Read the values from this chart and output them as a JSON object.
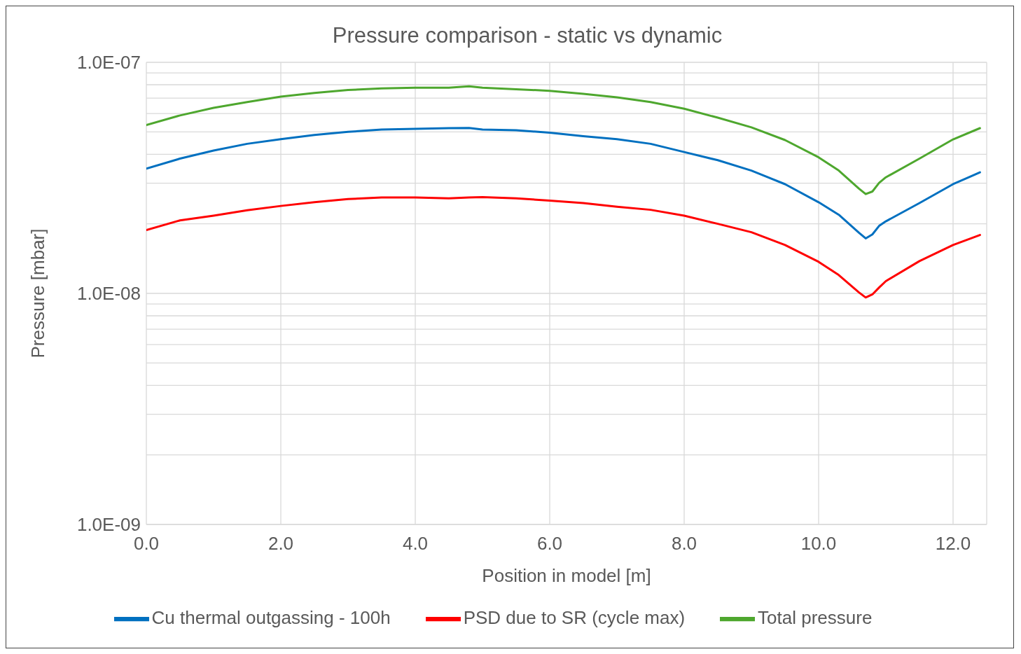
{
  "chart_data": {
    "type": "line",
    "title": "Pressure comparison - static vs dynamic",
    "xlabel": "Position in model [m]",
    "ylabel": "Pressure [mbar]",
    "x": [
      0,
      0.5,
      1,
      1.5,
      2,
      2.5,
      3,
      3.5,
      4,
      4.5,
      4.8,
      5,
      5.5,
      6,
      6.5,
      7,
      7.5,
      8,
      8.5,
      9,
      9.5,
      10,
      10.3,
      10.6,
      10.7,
      10.8,
      10.9,
      11,
      11.5,
      12,
      12.4
    ],
    "series": [
      {
        "name": "Cu thermal outgassing - 100h",
        "color": "#0070c0",
        "values": [
          3.47e-08,
          3.83e-08,
          4.15e-08,
          4.44e-08,
          4.65e-08,
          4.85e-08,
          5e-08,
          5.12e-08,
          5.15e-08,
          5.19e-08,
          5.2e-08,
          5.12e-08,
          5.08e-08,
          4.96e-08,
          4.79e-08,
          4.65e-08,
          4.44e-08,
          4.09e-08,
          3.77e-08,
          3.4e-08,
          2.97e-08,
          2.48e-08,
          2.19e-08,
          1.83e-08,
          1.73e-08,
          1.8e-08,
          1.96e-08,
          2.05e-08,
          2.46e-08,
          2.97e-08,
          3.34e-08
        ]
      },
      {
        "name": "PSD due to SR (cycle max)",
        "color": "#ff0000",
        "values": [
          1.88e-08,
          2.07e-08,
          2.17e-08,
          2.29e-08,
          2.39e-08,
          2.48e-08,
          2.56e-08,
          2.6e-08,
          2.6e-08,
          2.58e-08,
          2.6e-08,
          2.61e-08,
          2.58e-08,
          2.52e-08,
          2.46e-08,
          2.37e-08,
          2.3e-08,
          2.17e-08,
          2e-08,
          1.84e-08,
          1.62e-08,
          1.37e-08,
          1.2e-08,
          1.01e-08,
          9.6e-09,
          9.9e-09,
          1.06e-08,
          1.13e-08,
          1.38e-08,
          1.62e-08,
          1.79e-08
        ]
      },
      {
        "name": "Total pressure",
        "color": "#4ea72e",
        "values": [
          5.35e-08,
          5.89e-08,
          6.35e-08,
          6.73e-08,
          7.1e-08,
          7.37e-08,
          7.59e-08,
          7.71e-08,
          7.76e-08,
          7.76e-08,
          7.88e-08,
          7.76e-08,
          7.65e-08,
          7.53e-08,
          7.31e-08,
          7.05e-08,
          6.73e-08,
          6.3e-08,
          5.76e-08,
          5.23e-08,
          4.61e-08,
          3.88e-08,
          3.4e-08,
          2.84e-08,
          2.69e-08,
          2.76e-08,
          3.01e-08,
          3.18e-08,
          3.83e-08,
          4.64e-08,
          5.19e-08
        ]
      }
    ],
    "xlim": [
      0,
      12.5
    ],
    "xticks": [
      {
        "value": 0,
        "label": "0.0"
      },
      {
        "value": 2,
        "label": "2.0"
      },
      {
        "value": 4,
        "label": "4.0"
      },
      {
        "value": 6,
        "label": "6.0"
      },
      {
        "value": 8,
        "label": "8.0"
      },
      {
        "value": 10,
        "label": "10.0"
      },
      {
        "value": 12,
        "label": "12.0"
      }
    ],
    "ylim": [
      1e-09,
      1e-07
    ],
    "log": true,
    "yticks": [
      {
        "value": 1e-09,
        "label": "1.0E-09"
      },
      {
        "value": 2e-09,
        "label": null
      },
      {
        "value": 3e-09,
        "label": null
      },
      {
        "value": 4e-09,
        "label": null
      },
      {
        "value": 5e-09,
        "label": null
      },
      {
        "value": 6e-09,
        "label": null
      },
      {
        "value": 7e-09,
        "label": null
      },
      {
        "value": 8e-09,
        "label": null
      },
      {
        "value": 9e-09,
        "label": null
      },
      {
        "value": 1e-08,
        "label": "1.0E-08"
      },
      {
        "value": 2e-08,
        "label": null
      },
      {
        "value": 3e-08,
        "label": null
      },
      {
        "value": 4e-08,
        "label": null
      },
      {
        "value": 5e-08,
        "label": null
      },
      {
        "value": 6e-08,
        "label": null
      },
      {
        "value": 7e-08,
        "label": null
      },
      {
        "value": 8e-08,
        "label": null
      },
      {
        "value": 9e-08,
        "label": null
      },
      {
        "value": 1e-07,
        "label": "1.0E-07"
      }
    ],
    "grid": true,
    "legend": "bottom",
    "marker": "none",
    "line_style": "solid"
  }
}
